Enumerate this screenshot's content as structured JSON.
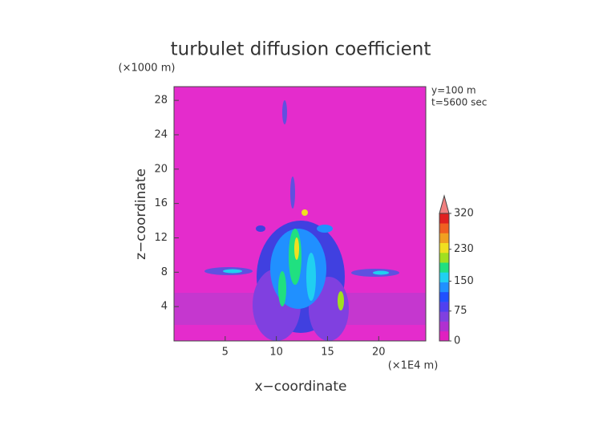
{
  "chart_data": {
    "type": "contour",
    "title": "turbulet diffusion coefficient",
    "x_label": "x−coordinate",
    "y_label": "z−coordinate",
    "x_unit": "(×1E4 m)",
    "y_unit": "(×1000 m)",
    "annotations": [
      "y=100 m",
      "t=5600 sec"
    ],
    "xlim": [
      0,
      24.6
    ],
    "xticks": [
      5,
      10,
      15,
      20
    ],
    "ylim": [
      0,
      29.6
    ],
    "yticks": [
      4,
      8,
      12,
      16,
      20,
      24,
      28
    ],
    "background_color": "#e42ccc",
    "colorbar": {
      "clim": [
        0,
        320
      ],
      "ticks": [
        0,
        75,
        150,
        230,
        320
      ],
      "colors": [
        "#e020c0",
        "#b030d0",
        "#8040e0",
        "#5040f0",
        "#2050ff",
        "#2090ff",
        "#20d0f0",
        "#20e080",
        "#a0e020",
        "#f0e020",
        "#f0a020",
        "#f06020",
        "#e02020"
      ],
      "extend_color": "#f08080"
    }
  }
}
